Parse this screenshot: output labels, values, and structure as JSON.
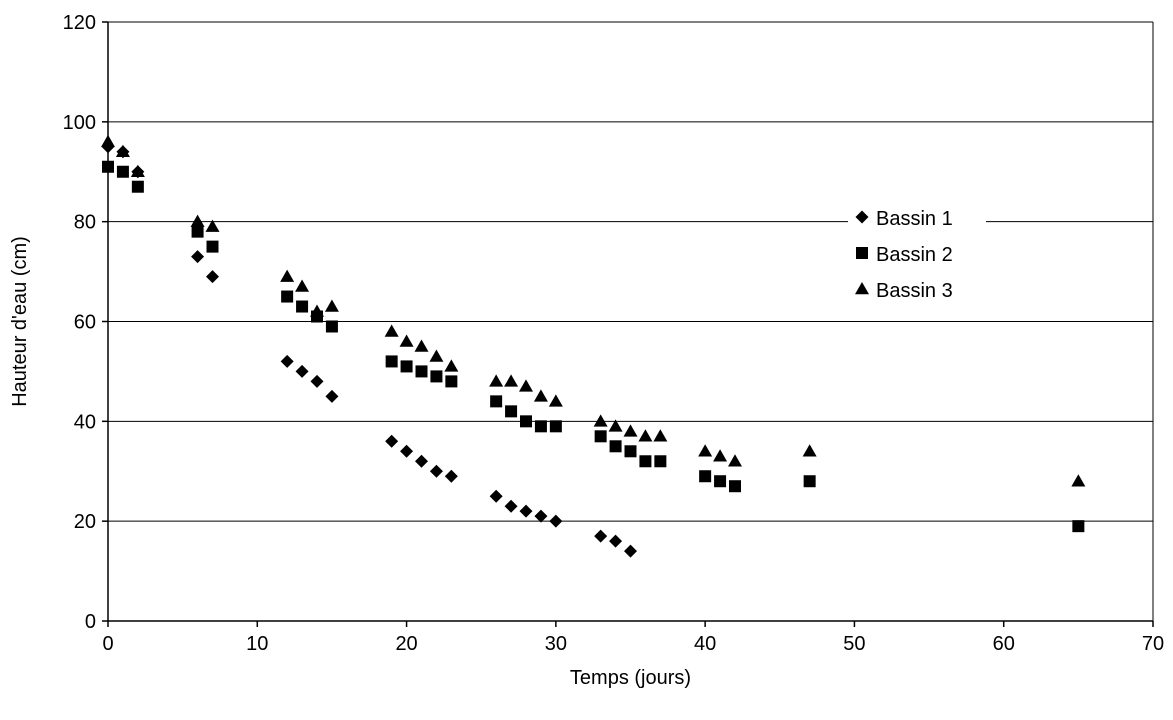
{
  "chart_data": {
    "type": "scatter",
    "title": "",
    "xlabel": "Temps (jours)",
    "ylabel": "Hauteur d'eau (cm)",
    "xlim": [
      0,
      70
    ],
    "ylim": [
      0,
      120
    ],
    "x_ticks": [
      0,
      10,
      20,
      30,
      40,
      50,
      60,
      70
    ],
    "y_ticks": [
      0,
      20,
      40,
      60,
      80,
      100,
      120
    ],
    "grid": "horizontal",
    "legend_position": "right",
    "series": [
      {
        "name": "Bassin 1",
        "marker": "diamond",
        "color": "#000000",
        "points": [
          [
            0,
            95
          ],
          [
            1,
            94
          ],
          [
            2,
            90
          ],
          [
            6,
            73
          ],
          [
            7,
            69
          ],
          [
            12,
            52
          ],
          [
            13,
            50
          ],
          [
            14,
            48
          ],
          [
            15,
            45
          ],
          [
            19,
            36
          ],
          [
            20,
            34
          ],
          [
            21,
            32
          ],
          [
            22,
            30
          ],
          [
            23,
            29
          ],
          [
            26,
            25
          ],
          [
            27,
            23
          ],
          [
            28,
            22
          ],
          [
            29,
            21
          ],
          [
            30,
            20
          ],
          [
            33,
            17
          ],
          [
            34,
            16
          ],
          [
            35,
            14
          ]
        ]
      },
      {
        "name": "Bassin 2",
        "marker": "square",
        "color": "#000000",
        "points": [
          [
            0,
            91
          ],
          [
            1,
            90
          ],
          [
            2,
            87
          ],
          [
            6,
            78
          ],
          [
            7,
            75
          ],
          [
            12,
            65
          ],
          [
            13,
            63
          ],
          [
            14,
            61
          ],
          [
            15,
            59
          ],
          [
            19,
            52
          ],
          [
            20,
            51
          ],
          [
            21,
            50
          ],
          [
            22,
            49
          ],
          [
            23,
            48
          ],
          [
            26,
            44
          ],
          [
            27,
            42
          ],
          [
            28,
            40
          ],
          [
            29,
            39
          ],
          [
            30,
            39
          ],
          [
            33,
            37
          ],
          [
            34,
            35
          ],
          [
            35,
            34
          ],
          [
            36,
            32
          ],
          [
            37,
            32
          ],
          [
            40,
            29
          ],
          [
            41,
            28
          ],
          [
            42,
            27
          ],
          [
            47,
            28
          ],
          [
            65,
            19
          ]
        ]
      },
      {
        "name": "Bassin 3",
        "marker": "triangle",
        "color": "#000000",
        "points": [
          [
            0,
            96
          ],
          [
            1,
            94
          ],
          [
            2,
            90
          ],
          [
            6,
            80
          ],
          [
            7,
            79
          ],
          [
            12,
            69
          ],
          [
            13,
            67
          ],
          [
            14,
            62
          ],
          [
            15,
            63
          ],
          [
            19,
            58
          ],
          [
            20,
            56
          ],
          [
            21,
            55
          ],
          [
            22,
            53
          ],
          [
            23,
            51
          ],
          [
            26,
            48
          ],
          [
            27,
            48
          ],
          [
            28,
            47
          ],
          [
            29,
            45
          ],
          [
            30,
            44
          ],
          [
            33,
            40
          ],
          [
            34,
            39
          ],
          [
            35,
            38
          ],
          [
            36,
            37
          ],
          [
            37,
            37
          ],
          [
            40,
            34
          ],
          [
            41,
            33
          ],
          [
            42,
            32
          ],
          [
            47,
            34
          ],
          [
            65,
            28
          ]
        ]
      }
    ]
  }
}
